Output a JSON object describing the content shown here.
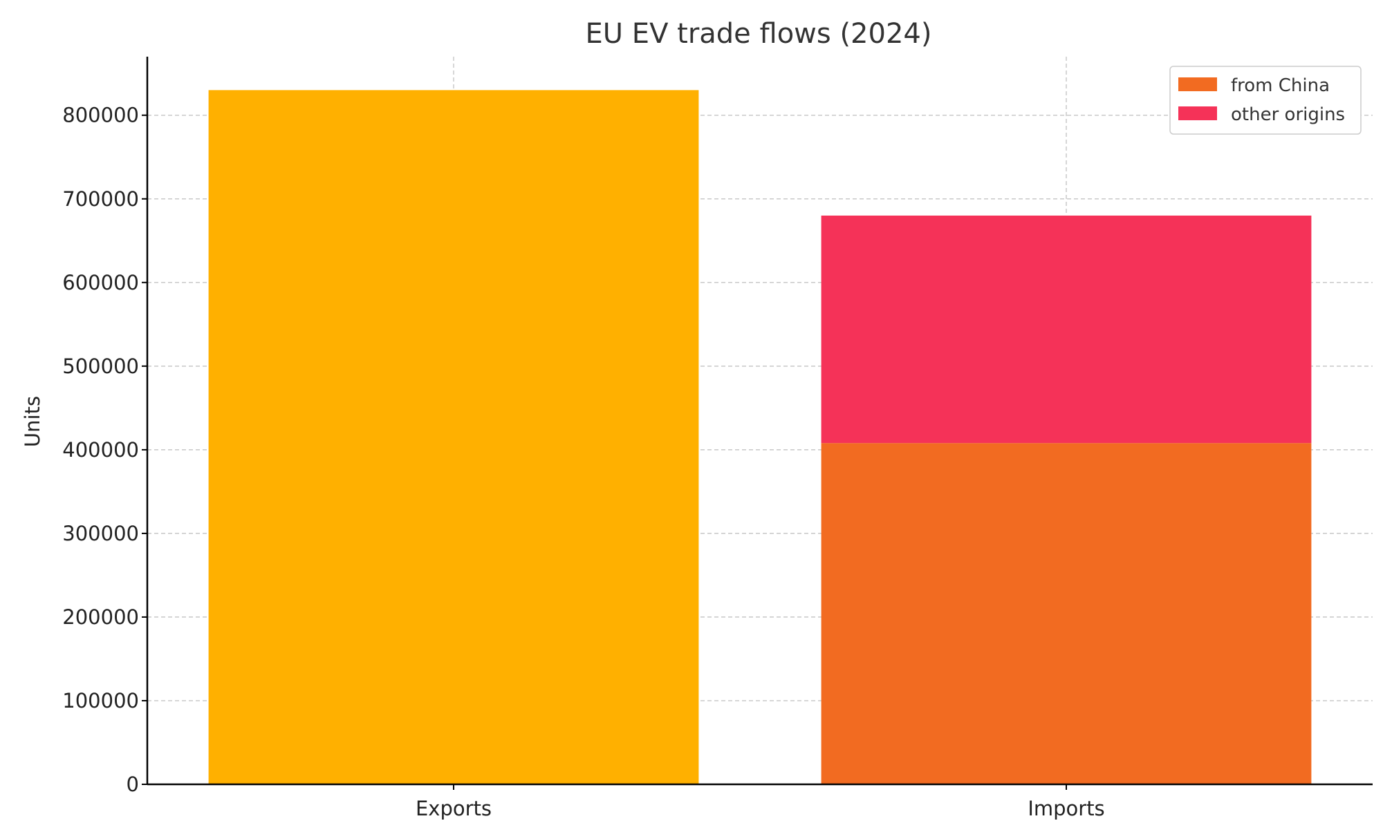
{
  "chart_data": {
    "type": "bar",
    "stacked": true,
    "title": "EU EV trade flows (2024)",
    "xlabel": "",
    "ylabel": "Units",
    "ylim": [
      0,
      870000
    ],
    "yticks": [
      0,
      100000,
      200000,
      300000,
      400000,
      500000,
      600000,
      700000,
      800000
    ],
    "grid": true,
    "legend_position": "top-right",
    "categories": [
      "Exports",
      "Imports"
    ],
    "bars": [
      {
        "category": "Exports",
        "segments": [
          {
            "value": 830000,
            "color": "#FFB000",
            "series": null
          }
        ]
      },
      {
        "category": "Imports",
        "segments": [
          {
            "value": 408000,
            "color": "#F26B21",
            "series": "from China"
          },
          {
            "value": 272000,
            "color": "#F53258",
            "series": "other origins"
          }
        ]
      }
    ],
    "legend": [
      {
        "name": "from China",
        "color": "#F26B21"
      },
      {
        "name": "other origins",
        "color": "#F53258"
      }
    ]
  }
}
